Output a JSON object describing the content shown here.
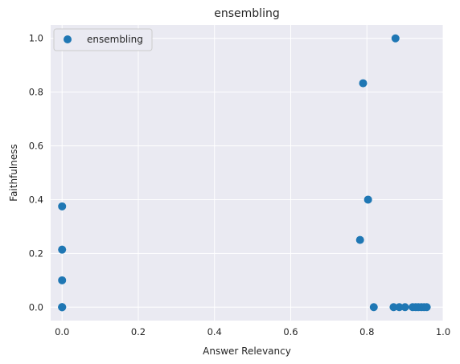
{
  "chart_data": {
    "type": "scatter",
    "title": "ensembling",
    "xlabel": "Answer Relevancy",
    "ylabel": "Faithfulness",
    "xlim": [
      -0.03,
      1.0
    ],
    "ylim": [
      -0.05,
      1.05
    ],
    "xticks": [
      0.0,
      0.2,
      0.4,
      0.6,
      0.8,
      1.0
    ],
    "yticks": [
      0.0,
      0.2,
      0.4,
      0.6,
      0.8,
      1.0
    ],
    "xtick_labels": [
      "0.0",
      "0.2",
      "0.4",
      "0.6",
      "0.8",
      "1.0"
    ],
    "ytick_labels": [
      "0.0",
      "0.2",
      "0.4",
      "0.6",
      "0.8",
      "1.0"
    ],
    "grid": true,
    "legend_position": "top-left",
    "series": [
      {
        "name": "ensembling",
        "color": "#1f77b4",
        "points": [
          {
            "x": 0.0,
            "y": 0.375
          },
          {
            "x": 0.0,
            "y": 0.214
          },
          {
            "x": 0.0,
            "y": 0.1
          },
          {
            "x": 0.0,
            "y": 0.0
          },
          {
            "x": 0.0,
            "y": 0.0
          },
          {
            "x": 0.0,
            "y": 0.0
          },
          {
            "x": 0.875,
            "y": 1.0
          },
          {
            "x": 0.79,
            "y": 0.833
          },
          {
            "x": 0.803,
            "y": 0.4
          },
          {
            "x": 0.782,
            "y": 0.25
          },
          {
            "x": 0.818,
            "y": 0.0
          },
          {
            "x": 0.87,
            "y": 0.0
          },
          {
            "x": 0.885,
            "y": 0.0
          },
          {
            "x": 0.9,
            "y": 0.0
          },
          {
            "x": 0.92,
            "y": 0.0
          },
          {
            "x": 0.928,
            "y": 0.0
          },
          {
            "x": 0.935,
            "y": 0.0
          },
          {
            "x": 0.943,
            "y": 0.0
          },
          {
            "x": 0.95,
            "y": 0.0
          },
          {
            "x": 0.957,
            "y": 0.0
          }
        ]
      }
    ]
  }
}
